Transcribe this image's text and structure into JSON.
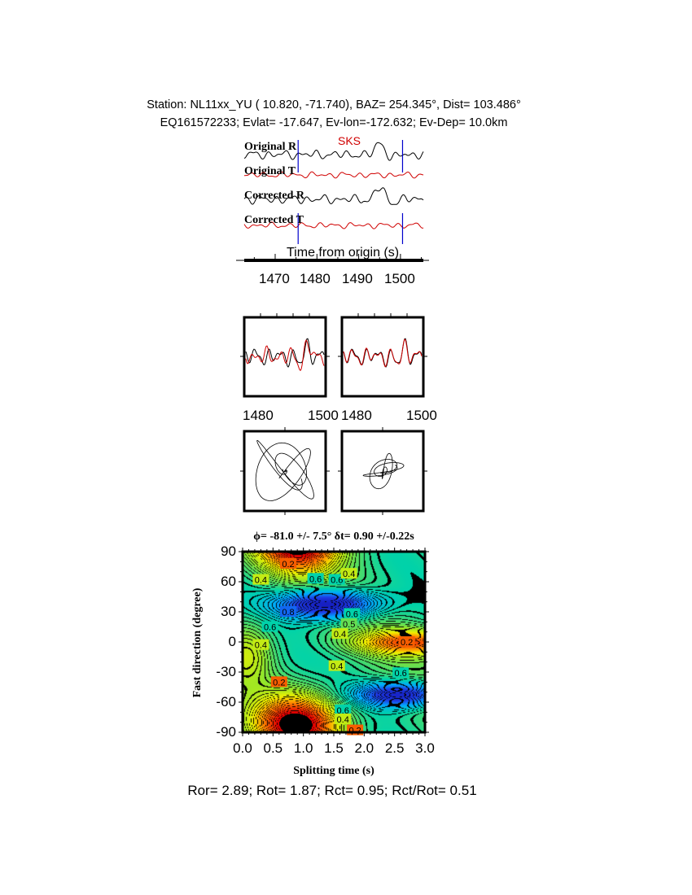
{
  "header": {
    "line1": "Station: NL11xx_YU (  10.820,  -71.740), BAZ=  254.345°, Dist=  103.486°",
    "line2": "EQ161572233; Evlat= -17.647, Ev-lon=-172.632; Ev-Dep= 10.0km"
  },
  "chart_data": [
    {
      "type": "line",
      "panel": "traces",
      "phase_label": "SKS",
      "trace_labels": [
        "Original R",
        "Original T",
        "Corrected R",
        "Corrected T"
      ],
      "trace_colors": [
        "#000000",
        "#d00000",
        "#000000",
        "#d00000"
      ],
      "window_marker_color": "#0000cc",
      "window_marks_s": [
        1475.5,
        1500.5
      ],
      "xlabel": "Time from origin (s)",
      "xticks": [
        "1470",
        "1480",
        "1490",
        "1500"
      ],
      "xlim": [
        1462,
        1505
      ]
    },
    {
      "type": "line",
      "panel": "waveform-overlay",
      "series_colors": [
        "#000000",
        "#d00000"
      ],
      "left_xticks": [
        "1480",
        "1500"
      ],
      "right_xticks": [
        "1480",
        "1500"
      ],
      "xlim": [
        1475.5,
        1500.5
      ]
    },
    {
      "type": "line",
      "panel": "particle-motion",
      "count": 2
    },
    {
      "type": "heatmap",
      "panel": "energy-grid",
      "title": "ϕ= -81.0 +/- 7.5° δt= 0.90 +/-0.22s",
      "xlabel": "Splitting time (s)",
      "ylabel": "Fast direction (degree)",
      "xlim": [
        0,
        3
      ],
      "ylim": [
        -90,
        90
      ],
      "xticks": [
        "0.0",
        "0.5",
        "1.0",
        "1.5",
        "2.0",
        "2.5",
        "3.0"
      ],
      "yticks": [
        "90",
        "60",
        "30",
        "0",
        "-30",
        "-60",
        "-90"
      ],
      "best_fit": {
        "dt": 0.9,
        "phi": -81.0
      },
      "contour_labels": [
        {
          "text": "0.2",
          "dt": 0.75,
          "phi": 78
        },
        {
          "text": "0.4",
          "dt": 0.3,
          "phi": 62
        },
        {
          "text": "0.6",
          "dt": 1.2,
          "phi": 63
        },
        {
          "text": "0.6",
          "dt": 1.55,
          "phi": 62
        },
        {
          "text": "0.4",
          "dt": 1.75,
          "phi": 68
        },
        {
          "text": "0.8",
          "dt": 0.75,
          "phi": 30
        },
        {
          "text": "0.6",
          "dt": 0.45,
          "phi": 15
        },
        {
          "text": "0.4",
          "dt": 0.3,
          "phi": -3
        },
        {
          "text": "0.6",
          "dt": 1.8,
          "phi": 28
        },
        {
          "text": "0.5",
          "dt": 1.75,
          "phi": 18
        },
        {
          "text": "0.4",
          "dt": 1.6,
          "phi": 8
        },
        {
          "text": "0.2",
          "dt": 2.7,
          "phi": 0
        },
        {
          "text": "0.4",
          "dt": 1.55,
          "phi": -24
        },
        {
          "text": "0.6",
          "dt": 2.6,
          "phi": -31
        },
        {
          "text": "0.2",
          "dt": 0.6,
          "phi": -40
        },
        {
          "text": "0.6",
          "dt": 1.65,
          "phi": -68
        },
        {
          "text": "0.4",
          "dt": 1.65,
          "phi": -77
        },
        {
          "text": "0.2",
          "dt": 1.85,
          "phi": -88
        }
      ]
    }
  ],
  "footer": "Ror= 2.89; Rot= 1.87; Rct= 0.95; Rct/Rot= 0.51"
}
